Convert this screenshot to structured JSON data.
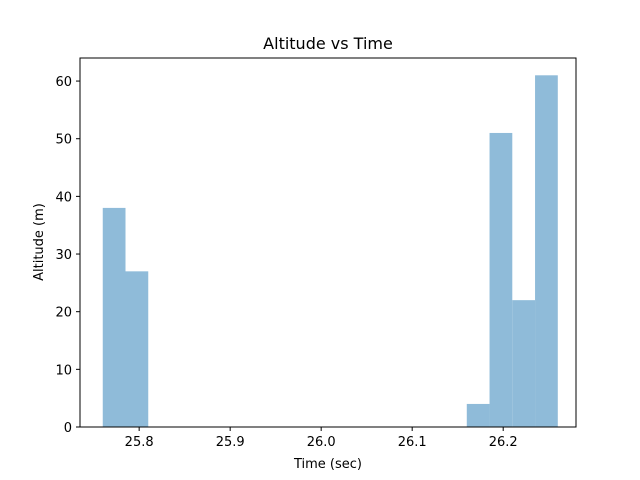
{
  "chart_data": {
    "type": "bar",
    "title": "Altitude vs Time",
    "xlabel": "Time (sec)",
    "ylabel": "Altitude (m)",
    "xlim": [
      25.735,
      26.28
    ],
    "ylim": [
      0,
      64
    ],
    "x_ticks": [
      25.8,
      25.9,
      26.0,
      26.1,
      26.2
    ],
    "x_tick_labels": [
      "25.8",
      "25.9",
      "26.0",
      "26.1",
      "26.2"
    ],
    "y_ticks": [
      0,
      10,
      20,
      30,
      40,
      50,
      60
    ],
    "y_tick_labels": [
      "0",
      "10",
      "20",
      "30",
      "40",
      "50",
      "60"
    ],
    "bin_width": 0.025,
    "bars": [
      {
        "x": 25.76,
        "value": 38
      },
      {
        "x": 25.785,
        "value": 27
      },
      {
        "x": 26.16,
        "value": 4
      },
      {
        "x": 26.185,
        "value": 51
      },
      {
        "x": 26.21,
        "value": 22
      },
      {
        "x": 26.235,
        "value": 61
      }
    ],
    "bar_color": "#8fbbd9",
    "grid": false,
    "legend": "none"
  }
}
